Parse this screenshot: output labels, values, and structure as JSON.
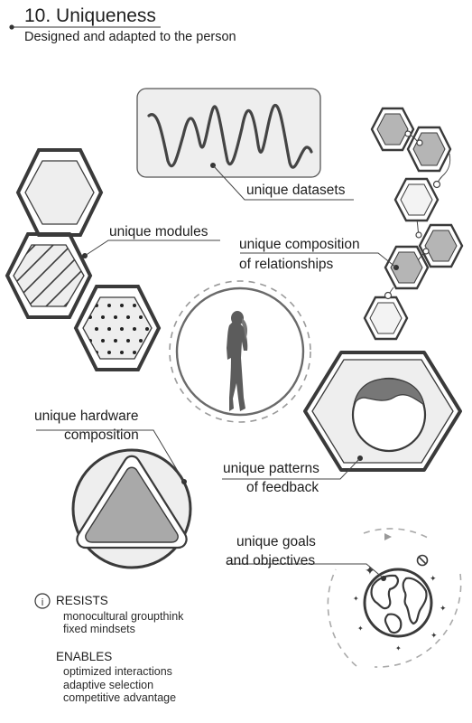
{
  "header": {
    "title": "10. Uniqueness",
    "subtitle": "Designed and adapted to the person"
  },
  "labels": {
    "unique_datasets": "unique datasets",
    "unique_modules": "unique modules",
    "unique_composition_1": "unique composition",
    "unique_composition_2": "of relationships",
    "unique_hardware_1": "unique hardware",
    "unique_hardware_2": "composition",
    "unique_patterns_1": "unique patterns",
    "unique_patterns_2": "of feedback",
    "unique_goals_1": "unique goals",
    "unique_goals_2": "and objectives"
  },
  "resists": {
    "icon": "info-icon",
    "heading": "RESISTS",
    "items": [
      "monocultural groupthink",
      "fixed mindsets"
    ]
  },
  "enables": {
    "heading": "ENABLES",
    "items": [
      "optimized interactions",
      "adaptive selection",
      "competitive advantage"
    ]
  },
  "colors": {
    "stroke": "#3a3a3a",
    "light_fill": "#eeeeee",
    "mid_fill": "#9d9d9d",
    "dark_fill": "#4a4a4a"
  }
}
